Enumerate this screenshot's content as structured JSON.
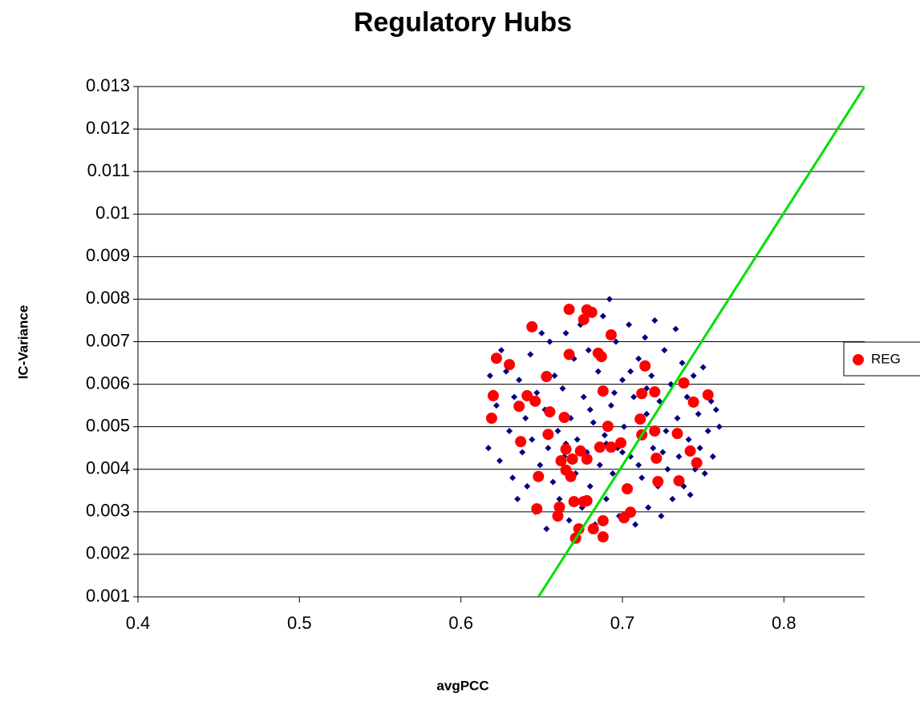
{
  "chart_data": {
    "type": "scatter",
    "title": "Regulatory Hubs",
    "x_label": "avgPCC",
    "y_label": "IC-Variance",
    "xlim": [
      0.4,
      0.85
    ],
    "xticks": [
      0.4,
      0.5,
      0.6,
      0.7,
      0.8
    ],
    "ylim": [
      0.001,
      0.013
    ],
    "yticks": [
      0.001,
      0.002,
      0.003,
      0.004,
      0.005,
      0.006,
      0.007,
      0.008,
      0.009,
      0.01,
      0.011,
      0.012,
      0.013
    ],
    "grid": true,
    "legend": "right",
    "series": [
      {
        "color": "#000080",
        "marker": "diamond",
        "x": [
          0.618,
          0.62,
          0.617,
          0.622,
          0.624,
          0.625,
          0.628,
          0.63,
          0.632,
          0.633,
          0.635,
          0.636,
          0.638,
          0.64,
          0.641,
          0.643,
          0.644,
          0.646,
          0.647,
          0.649,
          0.65,
          0.652,
          0.653,
          0.654,
          0.655,
          0.657,
          0.658,
          0.66,
          0.661,
          0.663,
          0.664,
          0.665,
          0.667,
          0.668,
          0.67,
          0.671,
          0.672,
          0.674,
          0.675,
          0.676,
          0.678,
          0.679,
          0.68,
          0.682,
          0.683,
          0.685,
          0.686,
          0.688,
          0.689,
          0.69,
          0.692,
          0.693,
          0.694,
          0.696,
          0.697,
          0.698,
          0.7,
          0.701,
          0.703,
          0.704,
          0.705,
          0.707,
          0.708,
          0.71,
          0.711,
          0.712,
          0.714,
          0.715,
          0.716,
          0.718,
          0.719,
          0.72,
          0.722,
          0.723,
          0.724,
          0.726,
          0.727,
          0.728,
          0.73,
          0.731,
          0.733,
          0.734,
          0.735,
          0.737,
          0.738,
          0.74,
          0.741,
          0.742,
          0.744,
          0.745,
          0.747,
          0.748,
          0.75,
          0.751,
          0.753,
          0.755,
          0.756,
          0.758,
          0.76,
          0.7,
          0.69,
          0.68,
          0.71,
          0.695,
          0.705,
          0.715,
          0.665,
          0.725
        ],
        "values": [
          0.0062,
          0.0058,
          0.0045,
          0.0055,
          0.0042,
          0.0068,
          0.0063,
          0.0049,
          0.0038,
          0.0057,
          0.0033,
          0.0061,
          0.0044,
          0.0052,
          0.0036,
          0.0067,
          0.0047,
          0.003,
          0.0058,
          0.0041,
          0.0072,
          0.0054,
          0.0026,
          0.0045,
          0.007,
          0.0037,
          0.0062,
          0.0049,
          0.0033,
          0.0059,
          0.0043,
          0.0072,
          0.0028,
          0.0052,
          0.0066,
          0.0039,
          0.0047,
          0.0074,
          0.0031,
          0.0057,
          0.0044,
          0.0068,
          0.0036,
          0.0051,
          0.0027,
          0.0063,
          0.0041,
          0.0076,
          0.0048,
          0.0033,
          0.008,
          0.0055,
          0.0039,
          0.007,
          0.0045,
          0.0029,
          0.0061,
          0.005,
          0.0035,
          0.0074,
          0.0043,
          0.0057,
          0.0027,
          0.0066,
          0.0048,
          0.0038,
          0.0071,
          0.0053,
          0.0031,
          0.0062,
          0.0045,
          0.0075,
          0.0036,
          0.0056,
          0.0029,
          0.0068,
          0.0049,
          0.004,
          0.006,
          0.0033,
          0.0073,
          0.0052,
          0.0043,
          0.0065,
          0.0036,
          0.0057,
          0.0047,
          0.0034,
          0.0062,
          0.004,
          0.0053,
          0.0045,
          0.0064,
          0.0039,
          0.0049,
          0.0056,
          0.0043,
          0.0054,
          0.005,
          0.0044,
          0.0046,
          0.0054,
          0.0041,
          0.0058,
          0.0063,
          0.0059,
          0.0046,
          0.0044
        ]
      },
      {
        "name": "REG",
        "color": "#ff0000",
        "marker": "circle",
        "x": [
          0.619,
          0.62,
          0.622,
          0.63,
          0.636,
          0.637,
          0.641,
          0.644,
          0.646,
          0.648,
          0.647,
          0.654,
          0.653,
          0.655,
          0.661,
          0.664,
          0.662,
          0.665,
          0.665,
          0.668,
          0.669,
          0.667,
          0.66,
          0.667,
          0.676,
          0.678,
          0.681,
          0.685,
          0.687,
          0.693,
          0.688,
          0.674,
          0.67,
          0.676,
          0.678,
          0.682,
          0.688,
          0.688,
          0.671,
          0.673,
          0.678,
          0.686,
          0.693,
          0.691,
          0.699,
          0.701,
          0.705,
          0.703,
          0.711,
          0.712,
          0.714,
          0.712,
          0.72,
          0.72,
          0.721,
          0.722,
          0.735,
          0.734,
          0.738,
          0.742,
          0.744,
          0.746,
          0.753
        ],
        "values": [
          0.0052,
          0.00573,
          0.00661,
          0.00646,
          0.00548,
          0.00465,
          0.00573,
          0.00735,
          0.0056,
          0.00383,
          0.00307,
          0.00482,
          0.00618,
          0.00535,
          0.00311,
          0.00522,
          0.0042,
          0.00447,
          0.00398,
          0.00383,
          0.00424,
          0.0067,
          0.0029,
          0.00776,
          0.00752,
          0.00775,
          0.00769,
          0.00673,
          0.00665,
          0.00716,
          0.00584,
          0.00443,
          0.00324,
          0.00324,
          0.00326,
          0.0026,
          0.00279,
          0.00241,
          0.00238,
          0.0026,
          0.00424,
          0.00452,
          0.00452,
          0.00501,
          0.00462,
          0.00286,
          0.00299,
          0.00354,
          0.00518,
          0.00578,
          0.00643,
          0.00481,
          0.00582,
          0.0049,
          0.00426,
          0.00371,
          0.00373,
          0.00484,
          0.00603,
          0.00443,
          0.00558,
          0.00415,
          0.00575
        ]
      }
    ],
    "line": {
      "color": "#00e000",
      "x": [
        0.648,
        0.85
      ],
      "values": [
        0.001,
        0.013
      ]
    }
  }
}
